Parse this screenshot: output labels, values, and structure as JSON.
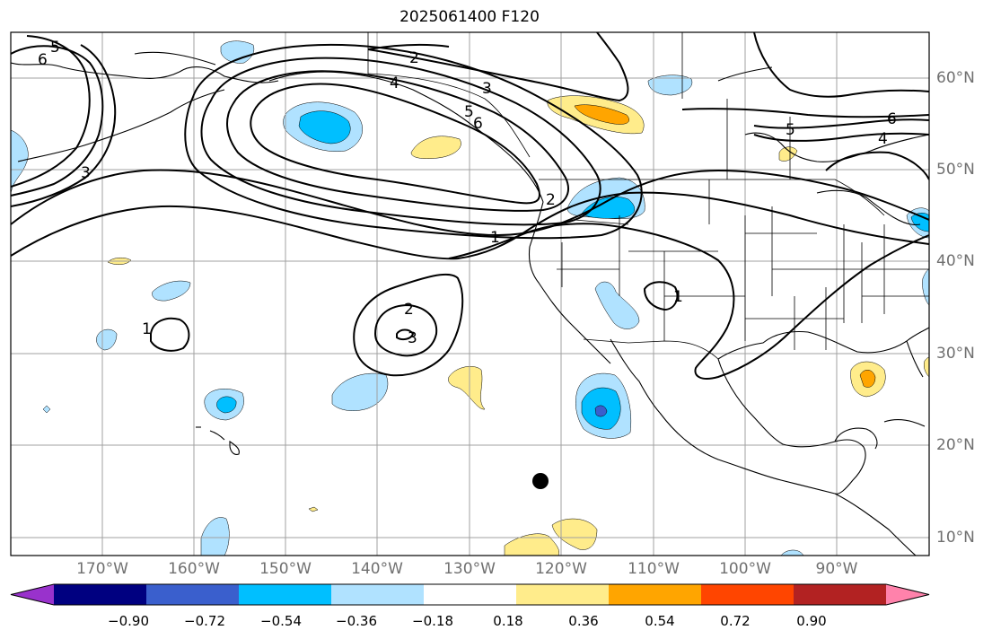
{
  "title": "2025061400 F120",
  "lon_labels": [
    "170°W",
    "160°W",
    "150°W",
    "140°W",
    "130°W",
    "120°W",
    "110°W",
    "100°W",
    "90°W"
  ],
  "lat_labels": [
    "60°N",
    "50°N",
    "40°N",
    "30°N",
    "20°N",
    "10°N"
  ],
  "colorbar": {
    "tick_labels": [
      "−0.90",
      "−0.72",
      "−0.54",
      "−0.36",
      "−0.18",
      "0.18",
      "0.36",
      "0.54",
      "0.72",
      "0.90"
    ],
    "colors": [
      "#9932cc",
      "#000080",
      "#3a5fcd",
      "#00bfff",
      "#b0e2ff",
      "#ffffff",
      "#ffec8b",
      "#ffa500",
      "#ff4500",
      "#b22222",
      "#ff82ab"
    ]
  },
  "contour_labels": [
    "1",
    "2",
    "3",
    "4",
    "5",
    "6"
  ],
  "colors": {
    "gridline": "#a0a0a0",
    "coast": "#000000",
    "contour": "#000000",
    "tick_text": "#707070"
  }
}
